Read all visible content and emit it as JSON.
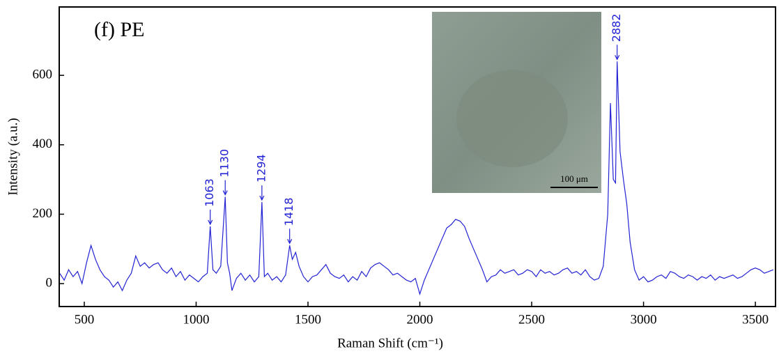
{
  "chart_data": {
    "type": "line",
    "title": "(f) PE",
    "x_label": "Raman Shift (cm⁻¹)",
    "y_label": "Intensity (a.u.)",
    "xlim": [
      388,
      3590
    ],
    "ylim": [
      -66,
      797
    ],
    "xticks": [
      500,
      1000,
      1500,
      2000,
      2500,
      3000,
      3500
    ],
    "yticks": [
      0,
      200,
      400,
      600
    ],
    "inset_scale_label": "100 μm",
    "annotations": [
      {
        "text": "1063",
        "x": 1063,
        "y": 165
      },
      {
        "text": "1130",
        "x": 1130,
        "y": 250
      },
      {
        "text": "1294",
        "x": 1294,
        "y": 235
      },
      {
        "text": "1418",
        "x": 1418,
        "y": 110
      },
      {
        "text": "2882",
        "x": 2882,
        "y": 640
      }
    ],
    "series": [
      {
        "color": "#2222d4",
        "x": [
          390,
          410,
          430,
          450,
          470,
          490,
          510,
          530,
          550,
          570,
          590,
          610,
          630,
          650,
          670,
          690,
          710,
          730,
          750,
          770,
          790,
          810,
          830,
          850,
          870,
          890,
          910,
          930,
          950,
          970,
          990,
          1010,
          1030,
          1050,
          1063,
          1075,
          1090,
          1110,
          1130,
          1140,
          1150,
          1160,
          1180,
          1200,
          1220,
          1240,
          1260,
          1280,
          1294,
          1305,
          1320,
          1340,
          1360,
          1380,
          1400,
          1418,
          1430,
          1445,
          1460,
          1480,
          1500,
          1520,
          1540,
          1560,
          1580,
          1600,
          1620,
          1640,
          1660,
          1680,
          1700,
          1720,
          1740,
          1760,
          1780,
          1800,
          1820,
          1840,
          1860,
          1880,
          1900,
          1920,
          1940,
          1960,
          1980,
          2000,
          2020,
          2040,
          2060,
          2080,
          2100,
          2120,
          2140,
          2160,
          2180,
          2200,
          2220,
          2240,
          2260,
          2280,
          2300,
          2320,
          2340,
          2360,
          2380,
          2400,
          2420,
          2440,
          2460,
          2480,
          2500,
          2520,
          2540,
          2560,
          2580,
          2600,
          2620,
          2640,
          2660,
          2680,
          2700,
          2720,
          2740,
          2760,
          2780,
          2800,
          2820,
          2840,
          2852,
          2865,
          2875,
          2882,
          2895,
          2910,
          2925,
          2940,
          2960,
          2980,
          3000,
          3020,
          3040,
          3060,
          3080,
          3100,
          3120,
          3140,
          3160,
          3180,
          3200,
          3220,
          3240,
          3260,
          3280,
          3300,
          3320,
          3340,
          3360,
          3380,
          3400,
          3420,
          3440,
          3460,
          3480,
          3500,
          3520,
          3540,
          3560,
          3580
        ],
        "values": [
          30,
          10,
          40,
          20,
          35,
          0,
          60,
          110,
          70,
          40,
          20,
          10,
          -10,
          5,
          -20,
          10,
          30,
          80,
          50,
          60,
          45,
          55,
          60,
          40,
          30,
          45,
          20,
          35,
          10,
          25,
          15,
          5,
          20,
          30,
          165,
          40,
          30,
          50,
          250,
          60,
          30,
          -20,
          15,
          30,
          10,
          25,
          5,
          20,
          235,
          20,
          30,
          10,
          20,
          5,
          25,
          110,
          70,
          90,
          50,
          20,
          5,
          20,
          25,
          40,
          55,
          30,
          20,
          15,
          25,
          5,
          20,
          10,
          35,
          20,
          45,
          55,
          60,
          50,
          40,
          25,
          30,
          20,
          10,
          5,
          15,
          -30,
          10,
          40,
          70,
          100,
          130,
          160,
          170,
          185,
          180,
          165,
          130,
          100,
          70,
          40,
          5,
          20,
          25,
          40,
          30,
          35,
          40,
          25,
          30,
          40,
          35,
          20,
          40,
          30,
          35,
          25,
          30,
          40,
          45,
          30,
          35,
          25,
          40,
          20,
          10,
          15,
          50,
          200,
          520,
          300,
          290,
          640,
          380,
          300,
          230,
          120,
          40,
          10,
          20,
          5,
          10,
          20,
          25,
          15,
          35,
          30,
          20,
          15,
          25,
          20,
          10,
          20,
          15,
          25,
          10,
          20,
          15,
          20,
          25,
          15,
          20,
          30,
          40,
          45,
          40,
          30,
          35,
          40
        ]
      }
    ]
  }
}
